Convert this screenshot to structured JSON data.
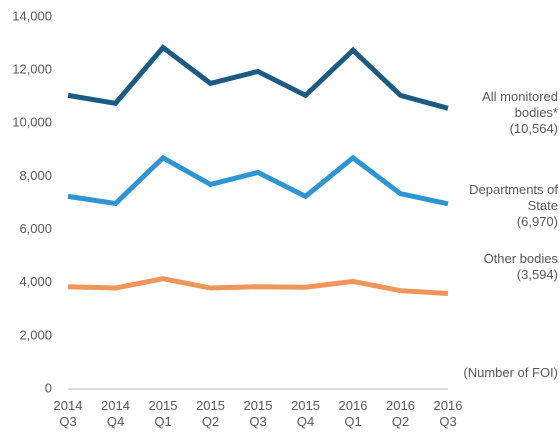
{
  "chart_data": {
    "type": "line",
    "categories": [
      "2014 Q3",
      "2014 Q4",
      "2015 Q1",
      "2015 Q2",
      "2015 Q3",
      "2015 Q4",
      "2016 Q1",
      "2016 Q2",
      "2016 Q3"
    ],
    "series": [
      {
        "name": "All monitored bodies*",
        "color": "#1b5b82",
        "values": [
          11050,
          10750,
          12850,
          11500,
          11950,
          11050,
          12750,
          11050,
          10564
        ],
        "value_labels": [
          null,
          null,
          null,
          null,
          null,
          null,
          null,
          null,
          "(10,564)"
        ]
      },
      {
        "name": "Departments of State",
        "color": "#2e95d3",
        "values": [
          7250,
          6980,
          8700,
          7700,
          8150,
          7250,
          8700,
          7350,
          6970
        ],
        "value_labels": [
          null,
          null,
          null,
          null,
          null,
          null,
          null,
          null,
          "(6,970)"
        ]
      },
      {
        "name": "Other bodies",
        "color": "#f0965a",
        "values": [
          3850,
          3800,
          4150,
          3800,
          3850,
          3830,
          4050,
          3700,
          3594
        ],
        "value_labels": [
          null,
          null,
          null,
          null,
          null,
          null,
          null,
          null,
          "(3,594)"
        ]
      }
    ],
    "annotation": "(Number of FOI)",
    "ylim": [
      0,
      14000
    ],
    "yticks": [
      0,
      {
        "value": 2000,
        "label": "2,000"
      },
      {
        "value": 4000,
        "label": "4,000"
      },
      {
        "value": 6000,
        "label": "6,000"
      },
      {
        "value": 8000,
        "label": "8,000"
      },
      {
        "value": 10000,
        "label": "10,000"
      },
      {
        "value": 12000,
        "label": "12,000"
      },
      {
        "value": 14000,
        "label": "14,000"
      }
    ]
  }
}
